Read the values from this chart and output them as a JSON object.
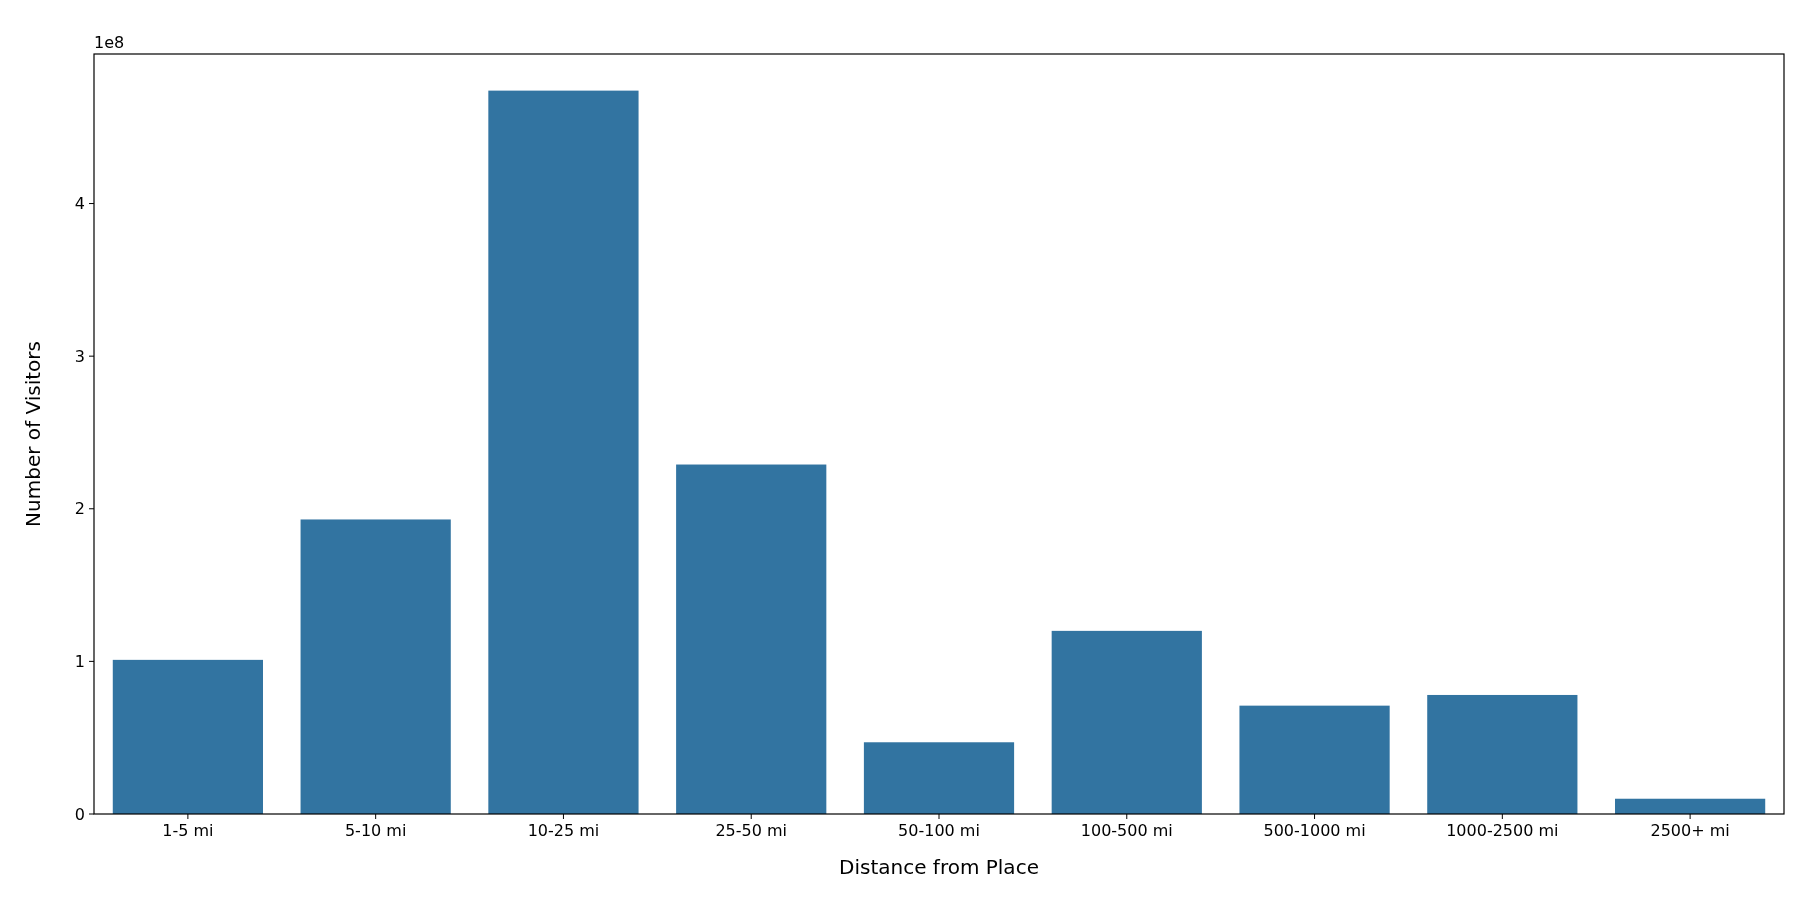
{
  "chart_data": {
    "type": "bar",
    "xlabel": "Distance from Place",
    "ylabel": "Number of Visitors",
    "annotations": [
      "1e8"
    ],
    "categories": [
      "1-5 mi",
      "5-10 mi",
      "10-25 mi",
      "25-50 mi",
      "50-100 mi",
      "100-500 mi",
      "500-1000 mi",
      "1000-2500 mi",
      "2500+ mi"
    ],
    "values": [
      1.01,
      1.93,
      4.74,
      2.29,
      0.47,
      1.2,
      0.71,
      0.78,
      0.1
    ],
    "color": "#3274a1",
    "ylim": [
      0,
      4.98
    ],
    "yticks": [
      0,
      1,
      2,
      3,
      4
    ]
  }
}
